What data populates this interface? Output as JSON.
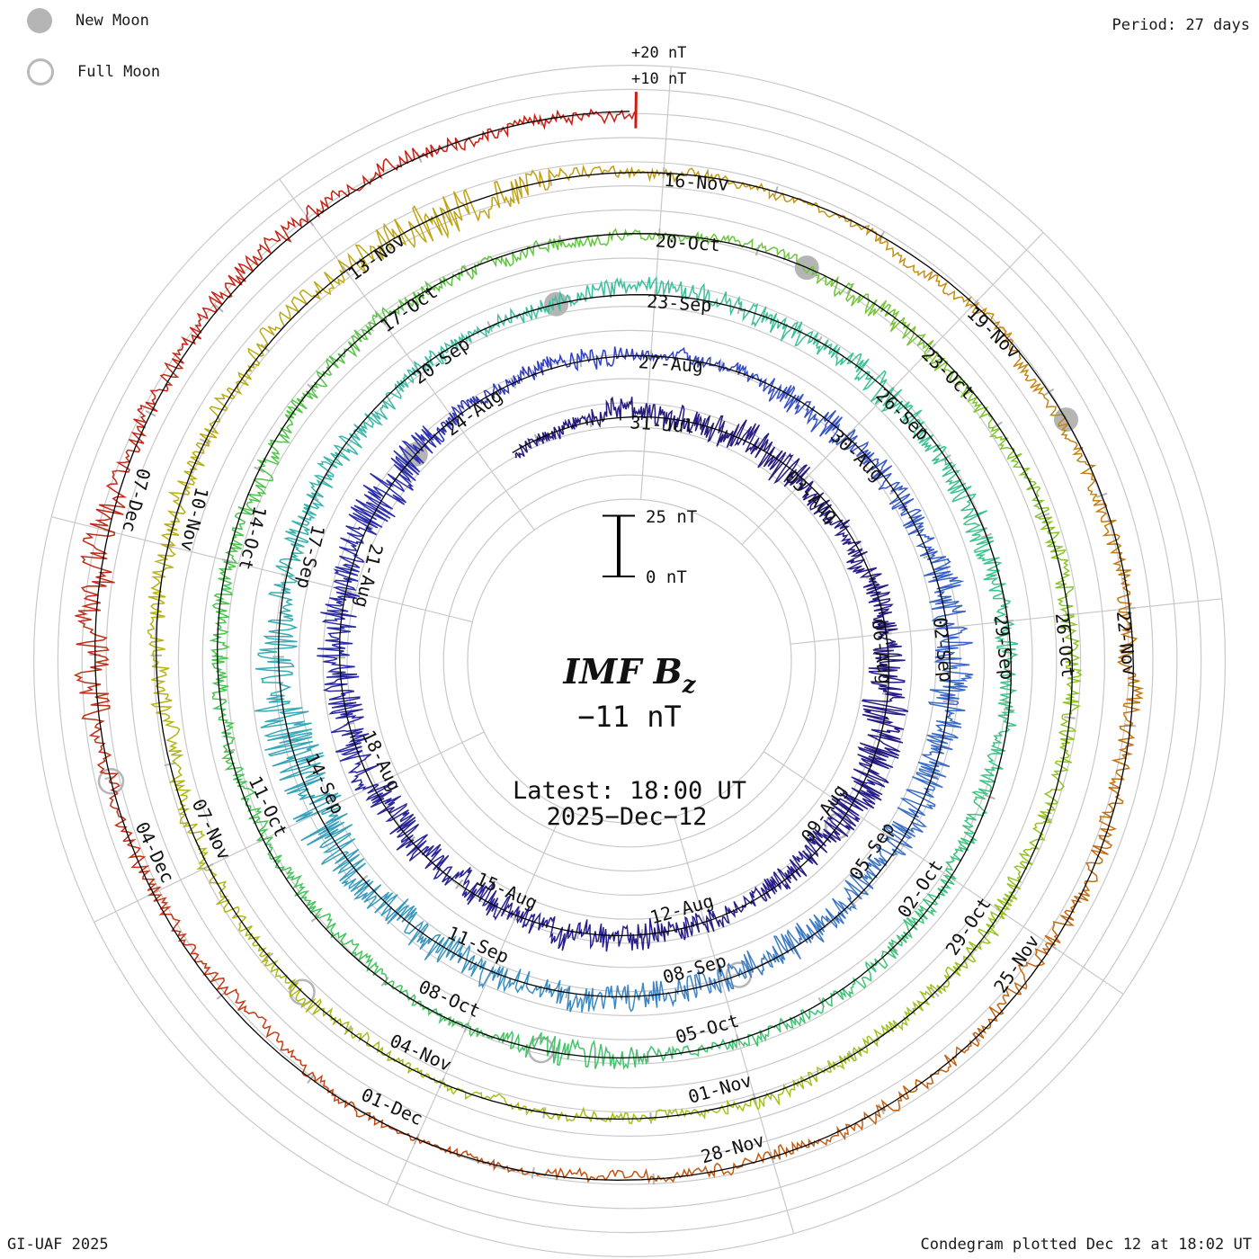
{
  "legend": {
    "new_moon": "New Moon",
    "full_moon": "Full Moon"
  },
  "header": {
    "period_label": "Period: 27 days"
  },
  "footer": {
    "credit": "GI-UAF 2025",
    "plotted": "Condegram plotted Dec 12 at 18:02 UT"
  },
  "center": {
    "title": "IMF B",
    "title_sub": "z",
    "value": "−11 nT",
    "latest_line1": "Latest: 18:00 UT",
    "latest_line2": "2025−Dec−12",
    "text_color": "#ee2a20"
  },
  "radial_scale": {
    "plus20": "+20 nT",
    "plus10": "+10 nT",
    "bar_top": "25 nT",
    "bar_bottom": "0 nT"
  },
  "chart_data": {
    "type": "line",
    "style": "condegram-spiral",
    "parameter": "IMF Bz",
    "units": "nT",
    "period_days": 27,
    "date_label_step_days": 3,
    "rotation_start_dates": [
      "31-Jul",
      "27-Aug",
      "23-Sep",
      "20-Oct",
      "16-Nov"
    ],
    "date_labels": [
      [
        "31-Jul",
        "03-Aug",
        "06-Aug",
        "09-Aug",
        "12-Aug",
        "15-Aug",
        "18-Aug",
        "21-Aug",
        "24-Aug"
      ],
      [
        "27-Aug",
        "30-Aug",
        "02-Sep",
        "05-Sep",
        "08-Sep",
        "11-Sep",
        "14-Sep",
        "17-Sep",
        "20-Sep"
      ],
      [
        "23-Sep",
        "26-Sep",
        "29-Sep",
        "02-Oct",
        "05-Oct",
        "08-Oct",
        "11-Oct",
        "14-Oct",
        "17-Oct"
      ],
      [
        "20-Oct",
        "23-Oct",
        "26-Oct",
        "29-Oct",
        "01-Nov",
        "04-Nov",
        "07-Nov",
        "10-Nov",
        "13-Nov"
      ],
      [
        "16-Nov",
        "19-Nov",
        "22-Nov",
        "25-Nov",
        "28-Nov",
        "01-Dec",
        "04-Dec",
        "07-Dec"
      ]
    ],
    "latest_value_nT": -11,
    "latest_time": "18:00 UT",
    "latest_date": "2025-Dec-12",
    "t0_days": -2.5,
    "t1_days": 134.75,
    "amplitude_scale": {
      "ref_low_nT": 0,
      "ref_high_nT": 25,
      "gridline_step_nT": 10
    },
    "moon_events": {
      "new_moon_dates": [
        "23-Aug",
        "21-Sep",
        "21-Oct",
        "20-Nov"
      ],
      "new_moon_t_days": [
        23.25,
        52.83,
        82.52,
        112.28
      ],
      "full_moon_dates": [
        "09-Aug",
        "07-Sep",
        "07-Oct",
        "05-Nov",
        "04-Dec"
      ],
      "full_moon_t_days": [
        9.33,
        38.76,
        68.16,
        97.55,
        126.97
      ]
    },
    "colormap_stops": [
      [
        -2.5,
        "#251b7b"
      ],
      [
        14,
        "#271f8e"
      ],
      [
        23,
        "#2c2fae"
      ],
      [
        27,
        "#3345c5"
      ],
      [
        33,
        "#3a64c8"
      ],
      [
        39,
        "#3d7fc4"
      ],
      [
        45,
        "#37a3bc"
      ],
      [
        51,
        "#3bbfa5"
      ],
      [
        57,
        "#3cc295"
      ],
      [
        63,
        "#3ec47e"
      ],
      [
        69,
        "#44c464"
      ],
      [
        75,
        "#4dc44e"
      ],
      [
        81,
        "#65c73d"
      ],
      [
        87,
        "#8dc52b"
      ],
      [
        93,
        "#a6c31e"
      ],
      [
        99,
        "#b2b817"
      ],
      [
        105,
        "#bda813"
      ],
      [
        108,
        "#c49c12"
      ],
      [
        111,
        "#c78c13"
      ],
      [
        114,
        "#c07a13"
      ],
      [
        117,
        "#c36a13"
      ],
      [
        120,
        "#c25e12"
      ],
      [
        123,
        "#c44b12"
      ],
      [
        126,
        "#c23517"
      ],
      [
        129,
        "#c02a18"
      ],
      [
        134.75,
        "#cc1c11"
      ]
    ],
    "grid_color": "#c9c9c9",
    "baseline_color": "#000000",
    "moon_marker_color": "#b5b5b5",
    "background": "#ffffff"
  }
}
